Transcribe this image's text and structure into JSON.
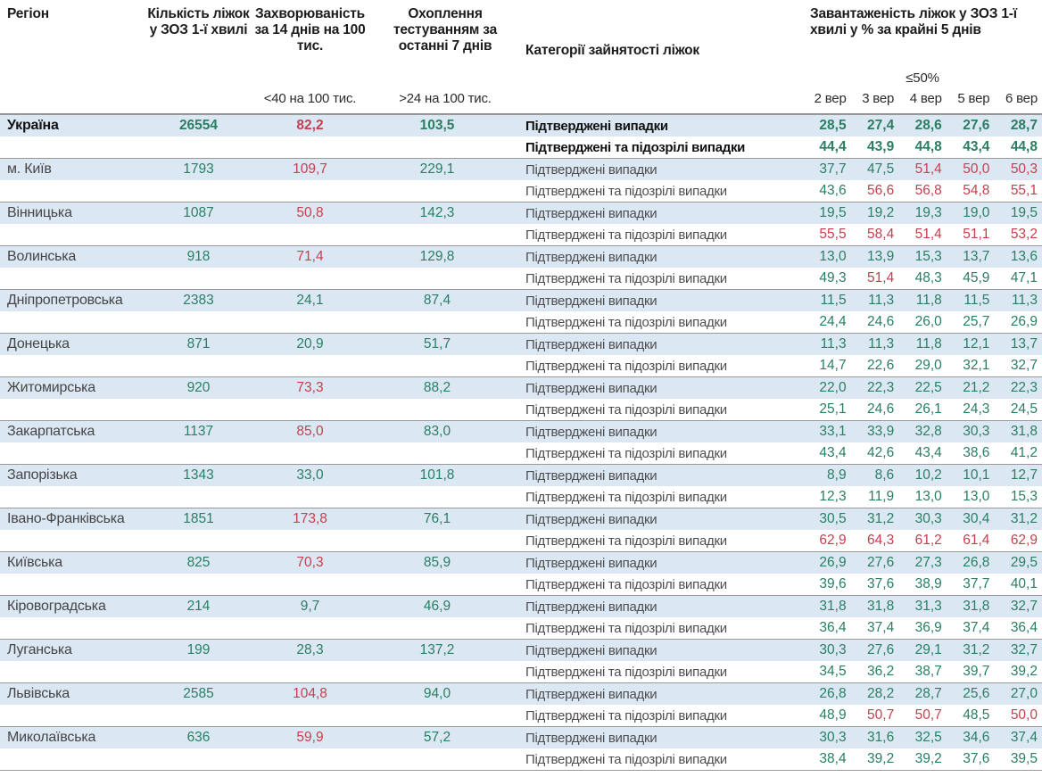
{
  "chart_data": {
    "type": "table",
    "columns": {
      "region": "Регіон",
      "beds": "Кількість ліжок у ЗОЗ 1-ї хвилі",
      "incidence": "Захворюваність за 14 днів на 100 тис.",
      "testing": "Охоплення тестуванням за останні 7 днів",
      "category": "Категорії зайнятості ліжок",
      "load": "Завантаженість ліжок у ЗОЗ 1-ї хвилі у % за крайні 5 днів"
    },
    "sub_headers": {
      "incidence_threshold": "<40 на 100 тис.",
      "testing_threshold": ">24 на 100 тис.",
      "occupancy_threshold": "≤50%"
    },
    "date_columns": [
      "2 вер",
      "3 вер",
      "4 вер",
      "5 вер",
      "6 вер"
    ],
    "category_labels": {
      "confirmed": "Підтверджені випадки",
      "confirmed_suspected": "Підтверджені та підозрілі випадки"
    },
    "rows": [
      {
        "region": "Україна",
        "bold": true,
        "beds": "26554",
        "inc": {
          "v": "82,2",
          "c": "r"
        },
        "test": {
          "v": "103,5",
          "c": "g"
        },
        "conf": {
          "vals": [
            "28,5",
            "27,4",
            "28,6",
            "27,6",
            "28,7"
          ],
          "cols": "ggggg"
        },
        "susp": {
          "vals": [
            "44,4",
            "43,9",
            "44,8",
            "43,4",
            "44,8"
          ],
          "cols": "ggggg"
        }
      },
      {
        "region": "м. Київ",
        "bold": false,
        "beds": "1793",
        "inc": {
          "v": "109,7",
          "c": "r"
        },
        "test": {
          "v": "229,1",
          "c": "g"
        },
        "conf": {
          "vals": [
            "37,7",
            "47,5",
            "51,4",
            "50,0",
            "50,3"
          ],
          "cols": "ggrrr"
        },
        "susp": {
          "vals": [
            "43,6",
            "56,6",
            "56,8",
            "54,8",
            "55,1"
          ],
          "cols": "grrrr"
        }
      },
      {
        "region": "Вінницька",
        "bold": false,
        "beds": "1087",
        "inc": {
          "v": "50,8",
          "c": "r"
        },
        "test": {
          "v": "142,3",
          "c": "g"
        },
        "conf": {
          "vals": [
            "19,5",
            "19,2",
            "19,3",
            "19,0",
            "19,5"
          ],
          "cols": "ggggg"
        },
        "susp": {
          "vals": [
            "55,5",
            "58,4",
            "51,4",
            "51,1",
            "53,2"
          ],
          "cols": "rrrrr"
        }
      },
      {
        "region": "Волинська",
        "bold": false,
        "beds": "918",
        "inc": {
          "v": "71,4",
          "c": "r"
        },
        "test": {
          "v": "129,8",
          "c": "g"
        },
        "conf": {
          "vals": [
            "13,0",
            "13,9",
            "15,3",
            "13,7",
            "13,6"
          ],
          "cols": "ggggg"
        },
        "susp": {
          "vals": [
            "49,3",
            "51,4",
            "48,3",
            "45,9",
            "47,1"
          ],
          "cols": "grggg"
        }
      },
      {
        "region": "Дніпропетровська",
        "bold": false,
        "beds": "2383",
        "inc": {
          "v": "24,1",
          "c": "g"
        },
        "test": {
          "v": "87,4",
          "c": "g"
        },
        "conf": {
          "vals": [
            "11,5",
            "11,3",
            "11,8",
            "11,5",
            "11,3"
          ],
          "cols": "ggggg"
        },
        "susp": {
          "vals": [
            "24,4",
            "24,6",
            "26,0",
            "25,7",
            "26,9"
          ],
          "cols": "ggggg"
        }
      },
      {
        "region": "Донецька",
        "bold": false,
        "beds": "871",
        "inc": {
          "v": "20,9",
          "c": "g"
        },
        "test": {
          "v": "51,7",
          "c": "g"
        },
        "conf": {
          "vals": [
            "11,3",
            "11,3",
            "11,8",
            "12,1",
            "13,7"
          ],
          "cols": "ggggg"
        },
        "susp": {
          "vals": [
            "14,7",
            "22,6",
            "29,0",
            "32,1",
            "32,7"
          ],
          "cols": "ggggg"
        }
      },
      {
        "region": "Житомирська",
        "bold": false,
        "beds": "920",
        "inc": {
          "v": "73,3",
          "c": "r"
        },
        "test": {
          "v": "88,2",
          "c": "g"
        },
        "conf": {
          "vals": [
            "22,0",
            "22,3",
            "22,5",
            "21,2",
            "22,3"
          ],
          "cols": "ggggg"
        },
        "susp": {
          "vals": [
            "25,1",
            "24,6",
            "26,1",
            "24,3",
            "24,5"
          ],
          "cols": "ggggg"
        }
      },
      {
        "region": "Закарпатська",
        "bold": false,
        "beds": "1137",
        "inc": {
          "v": "85,0",
          "c": "r"
        },
        "test": {
          "v": "83,0",
          "c": "g"
        },
        "conf": {
          "vals": [
            "33,1",
            "33,9",
            "32,8",
            "30,3",
            "31,8"
          ],
          "cols": "ggggg"
        },
        "susp": {
          "vals": [
            "43,4",
            "42,6",
            "43,4",
            "38,6",
            "41,2"
          ],
          "cols": "ggggg"
        }
      },
      {
        "region": "Запорізька",
        "bold": false,
        "beds": "1343",
        "inc": {
          "v": "33,0",
          "c": "g"
        },
        "test": {
          "v": "101,8",
          "c": "g"
        },
        "conf": {
          "vals": [
            "8,9",
            "8,6",
            "10,2",
            "10,1",
            "12,7"
          ],
          "cols": "ggggg"
        },
        "susp": {
          "vals": [
            "12,3",
            "11,9",
            "13,0",
            "13,0",
            "15,3"
          ],
          "cols": "ggggg"
        }
      },
      {
        "region": "Івано-Франківська",
        "bold": false,
        "beds": "1851",
        "inc": {
          "v": "173,8",
          "c": "r"
        },
        "test": {
          "v": "76,1",
          "c": "g"
        },
        "conf": {
          "vals": [
            "30,5",
            "31,2",
            "30,3",
            "30,4",
            "31,2"
          ],
          "cols": "ggggg"
        },
        "susp": {
          "vals": [
            "62,9",
            "64,3",
            "61,2",
            "61,4",
            "62,9"
          ],
          "cols": "rrrrr"
        }
      },
      {
        "region": "Київська",
        "bold": false,
        "beds": "825",
        "inc": {
          "v": "70,3",
          "c": "r"
        },
        "test": {
          "v": "85,9",
          "c": "g"
        },
        "conf": {
          "vals": [
            "26,9",
            "27,6",
            "27,3",
            "26,8",
            "29,5"
          ],
          "cols": "ggggg"
        },
        "susp": {
          "vals": [
            "39,6",
            "37,6",
            "38,9",
            "37,7",
            "40,1"
          ],
          "cols": "ggggg"
        }
      },
      {
        "region": "Кіровоградська",
        "bold": false,
        "beds": "214",
        "inc": {
          "v": "9,7",
          "c": "g"
        },
        "test": {
          "v": "46,9",
          "c": "g"
        },
        "conf": {
          "vals": [
            "31,8",
            "31,8",
            "31,3",
            "31,8",
            "32,7"
          ],
          "cols": "ggggg"
        },
        "susp": {
          "vals": [
            "36,4",
            "37,4",
            "36,9",
            "37,4",
            "36,4"
          ],
          "cols": "ggggg"
        }
      },
      {
        "region": "Луганська",
        "bold": false,
        "beds": "199",
        "inc": {
          "v": "28,3",
          "c": "g"
        },
        "test": {
          "v": "137,2",
          "c": "g"
        },
        "conf": {
          "vals": [
            "30,3",
            "27,6",
            "29,1",
            "31,2",
            "32,7"
          ],
          "cols": "ggggg"
        },
        "susp": {
          "vals": [
            "34,5",
            "36,2",
            "38,7",
            "39,7",
            "39,2"
          ],
          "cols": "ggggg"
        }
      },
      {
        "region": "Львівська",
        "bold": false,
        "beds": "2585",
        "inc": {
          "v": "104,8",
          "c": "r"
        },
        "test": {
          "v": "94,0",
          "c": "g"
        },
        "conf": {
          "vals": [
            "26,8",
            "28,2",
            "28,7",
            "25,6",
            "27,0"
          ],
          "cols": "ggggg"
        },
        "susp": {
          "vals": [
            "48,9",
            "50,7",
            "50,7",
            "48,5",
            "50,0"
          ],
          "cols": "grrgr"
        }
      },
      {
        "region": "Миколаївська",
        "bold": false,
        "beds": "636",
        "inc": {
          "v": "59,9",
          "c": "r"
        },
        "test": {
          "v": "57,2",
          "c": "g"
        },
        "conf": {
          "vals": [
            "30,3",
            "31,6",
            "32,5",
            "34,6",
            "37,4"
          ],
          "cols": "ggggg"
        },
        "susp": {
          "vals": [
            "38,4",
            "39,2",
            "39,2",
            "37,6",
            "39,5"
          ],
          "cols": "ggggg"
        }
      }
    ]
  },
  "colors": {
    "green": "#2a7e62",
    "red": "#c4404e",
    "row_highlight": "#dbe8f4",
    "divider": "#999999"
  }
}
